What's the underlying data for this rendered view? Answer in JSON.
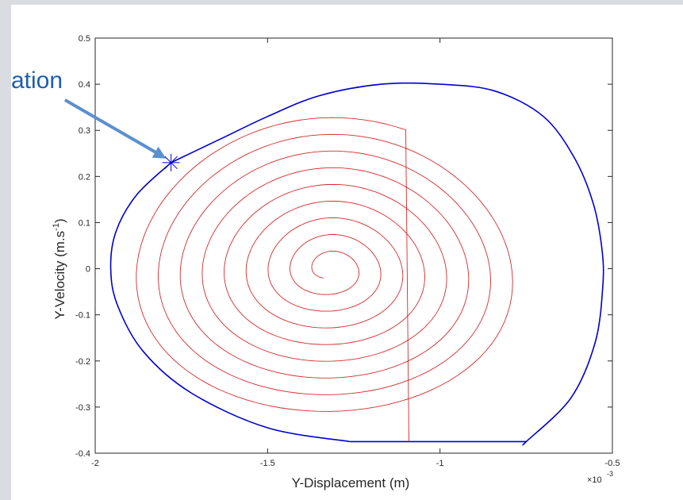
{
  "chart_data": {
    "type": "line",
    "title": "",
    "xlabel": "Y-Displacement (m)",
    "ylabel_main": "Y-Velocity (m.s",
    "ylabel_sup": "-1",
    "ylabel_tail": ")",
    "x_multiplier_base": "×10",
    "x_multiplier_exp": "-3",
    "xlim": [
      -2.0,
      -0.5
    ],
    "ylim": [
      -0.4,
      0.5
    ],
    "xticks": [
      {
        "value": -2.0,
        "label": "-2"
      },
      {
        "value": -1.5,
        "label": "-1.5"
      },
      {
        "value": -1.0,
        "label": "-1"
      },
      {
        "value": -0.5,
        "label": "-0.5"
      }
    ],
    "yticks": [
      {
        "value": -0.4,
        "label": "-0.4"
      },
      {
        "value": -0.3,
        "label": "-0.3"
      },
      {
        "value": -0.2,
        "label": "-0.2"
      },
      {
        "value": -0.1,
        "label": "-0.1"
      },
      {
        "value": 0.0,
        "label": "0"
      },
      {
        "value": 0.1,
        "label": "0.1"
      },
      {
        "value": 0.2,
        "label": "0.2"
      },
      {
        "value": 0.3,
        "label": "0.3"
      },
      {
        "value": 0.4,
        "label": "0.4"
      },
      {
        "value": 0.5,
        "label": "0.5"
      }
    ],
    "grid": false,
    "legend": "none",
    "series": [
      {
        "color": "#0000cc",
        "kind": "outer-orbit",
        "x": [
          -1.78,
          -1.88,
          -1.94,
          -1.955,
          -1.935,
          -1.86,
          -1.72,
          -1.5,
          -1.26,
          -1.06,
          -0.88,
          -0.75,
          -0.75,
          -0.62,
          -0.55,
          -0.528,
          -0.53,
          -0.555,
          -0.61,
          -0.7,
          -0.84,
          -1.0,
          -1.17,
          -1.35,
          -1.5,
          -1.64,
          -1.78
        ],
        "y": [
          0.23,
          0.16,
          0.08,
          0.0,
          -0.08,
          -0.18,
          -0.27,
          -0.345,
          -0.375,
          -0.375,
          -0.375,
          -0.375,
          -0.375,
          -0.28,
          -0.16,
          -0.04,
          0.04,
          0.14,
          0.24,
          0.33,
          0.385,
          0.4,
          0.4,
          0.375,
          0.33,
          0.28,
          0.23
        ]
      },
      {
        "color": "#d42a2a",
        "kind": "inner-spiral",
        "center": [
          -1.32,
          0.0
        ],
        "start_radius_x": 0.04,
        "start_radius_y": 0.022,
        "end_radius_x": 0.58,
        "end_radius_y": 0.33,
        "turns": 8.5,
        "end_point": [
          -1.09,
          -0.375
        ]
      }
    ],
    "marker": {
      "x": -1.78,
      "y": 0.23,
      "symbol": "asterisk",
      "color": "#0000cc"
    },
    "annotation": {
      "text": "ation",
      "color": "#1f5fa8",
      "arrow_to": [
        -1.785,
        0.232
      ]
    }
  }
}
